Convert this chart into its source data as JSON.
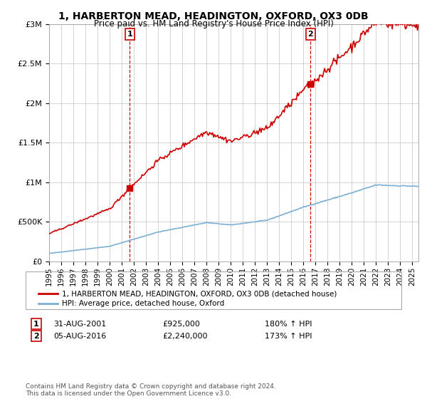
{
  "title": "1, HARBERTON MEAD, HEADINGTON, OXFORD, OX3 0DB",
  "subtitle": "Price paid vs. HM Land Registry's House Price Index (HPI)",
  "legend_line1": "1, HARBERTON MEAD, HEADINGTON, OXFORD, OX3 0DB (detached house)",
  "legend_line2": "HPI: Average price, detached house, Oxford",
  "sale1_date": "31-AUG-2001",
  "sale1_price": "£925,000",
  "sale1_hpi": "180% ↑ HPI",
  "sale1_year": 2001.67,
  "sale1_value": 925000,
  "sale2_date": "05-AUG-2016",
  "sale2_price": "£2,240,000",
  "sale2_hpi": "173% ↑ HPI",
  "sale2_year": 2016.58,
  "sale2_value": 2240000,
  "footer": "Contains HM Land Registry data © Crown copyright and database right 2024.\nThis data is licensed under the Open Government Licence v3.0.",
  "property_color": "#cc0000",
  "hpi_color": "#7bafd4",
  "marker_color": "#cc0000",
  "vline_color": "#cc0000",
  "background_color": "#ffffff",
  "grid_color": "#cccccc",
  "ylim": [
    0,
    3000000
  ],
  "xlim_start": 1995,
  "xlim_end": 2025.5
}
